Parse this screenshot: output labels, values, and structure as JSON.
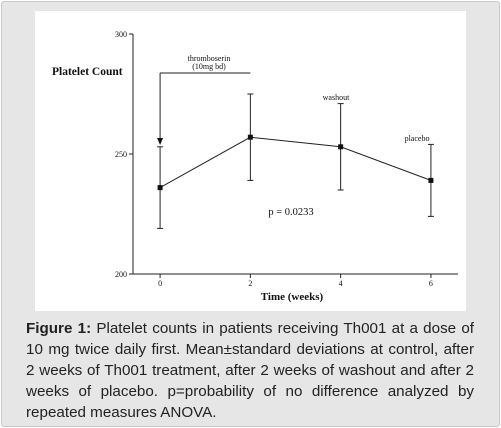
{
  "chart_data": {
    "type": "line",
    "title": "Platelet Count",
    "xlabel": "Time (weeks)",
    "ylabel": "",
    "x": [
      0,
      2,
      4,
      6
    ],
    "xticks": [
      "0",
      "2",
      "4",
      "6"
    ],
    "xlim": [
      -0.6,
      6.6
    ],
    "yticks": [
      "200",
      "250",
      "300"
    ],
    "ylim": [
      200,
      300
    ],
    "grid": false,
    "series": [
      {
        "values": [
          236,
          257,
          253,
          239
        ],
        "error": [
          17,
          18,
          18,
          15
        ]
      }
    ],
    "annotations": {
      "thromboserin_line1": "thromboserin",
      "thromboserin_line2": "(10mg bd)",
      "washout": "washout",
      "placebo": "placebo",
      "pvalue": "p = 0.0233"
    }
  },
  "caption": {
    "label": "Figure 1:",
    "text": " Platelet counts in patients receiving Th001 at a dose of 10 mg twice daily first. Mean±standard deviations at control, after 2 weeks of Th001 treatment, after 2 weeks of washout and after 2 weeks of placebo. p=probability of no difference analyzed by repeated measures ANOVA."
  }
}
